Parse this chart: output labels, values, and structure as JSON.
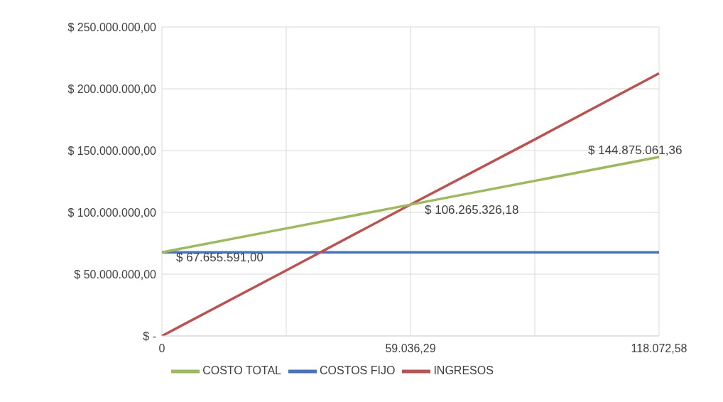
{
  "chart_data": {
    "type": "line",
    "categories": [
      "0",
      null,
      "59.036,29",
      null,
      "118.072,58"
    ],
    "series": [
      {
        "name": "COSTOS FIJO",
        "color": "#4472c4",
        "values": [
          67700000,
          67700000,
          67700000,
          67700000,
          67700000
        ]
      },
      {
        "name": "INGRESOS",
        "color": "#c0504d",
        "values": [
          0,
          53000000,
          106300000,
          159000000,
          212500000
        ]
      },
      {
        "name": "COSTO TOTAL",
        "color": "#9bbb59",
        "values": [
          67655591,
          87000000,
          106265326.18,
          125500000,
          144875061.36
        ],
        "value_labels": [
          "$ 67.655.591,00",
          null,
          "$ 106.265.326,18",
          null,
          "$ 144.875.061,36"
        ]
      }
    ],
    "ylim": [
      0,
      250000000
    ],
    "yticks": [
      {
        "value": 0,
        "label": "$ -"
      },
      {
        "value": 50000000,
        "label": "$ 50.000.000,00"
      },
      {
        "value": 100000000,
        "label": "$ 100.000.000,00"
      },
      {
        "value": 150000000,
        "label": "$ 150.000.000,00"
      },
      {
        "value": 200000000,
        "label": "$ 200.000.000,00"
      },
      {
        "value": 250000000,
        "label": "$ 250.000.000,00"
      }
    ],
    "grid": true,
    "legend": "bottom",
    "marker": "none",
    "line_style": "solid"
  }
}
